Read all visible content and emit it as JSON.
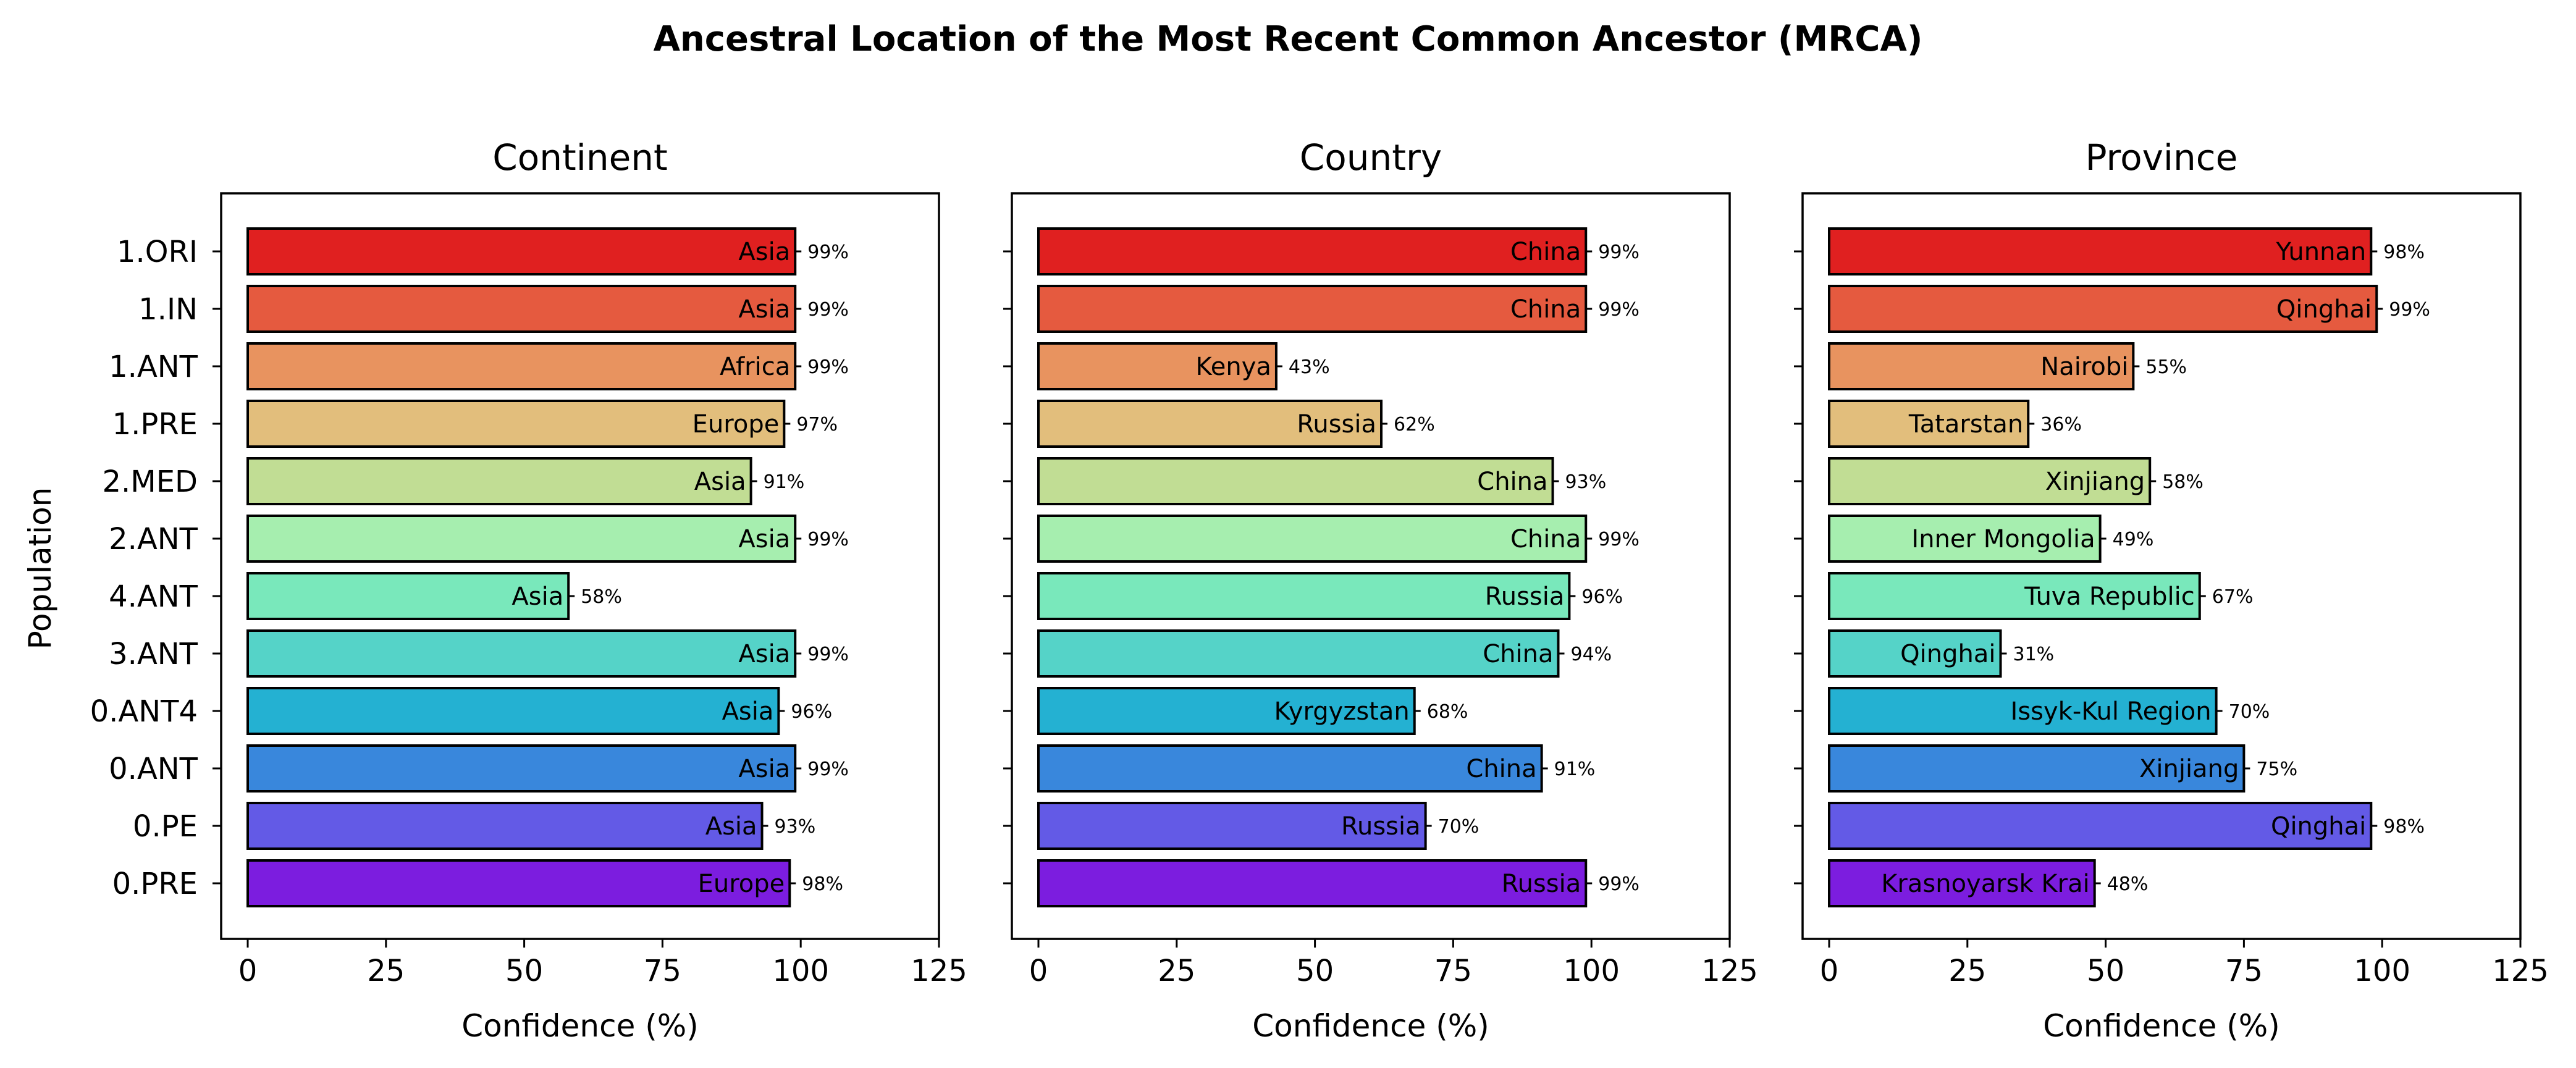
{
  "title": "Ancestral Location of the Most Recent Common Ancestor (MRCA)",
  "ylabel": "Population",
  "colors": [
    "#e02020",
    "#e55a3f",
    "#e8935f",
    "#e2be7c",
    "#c1dd94",
    "#a6eeaf",
    "#79e8bb",
    "#55d3c8",
    "#24b1d2",
    "#3987dc",
    "#635ae6",
    "#7c1ddf"
  ],
  "chart_data": [
    {
      "type": "bar",
      "orientation": "horizontal",
      "title": "Continent",
      "xlabel": "Confidence (%)",
      "ylabel": "Population",
      "xlim": [
        0,
        125
      ],
      "xticks": [
        "0",
        "25",
        "50",
        "75",
        "100",
        "125"
      ],
      "categories": [
        "1.ORI",
        "1.IN",
        "1.ANT",
        "1.PRE",
        "2.MED",
        "2.ANT",
        "4.ANT",
        "3.ANT",
        "0.ANT4",
        "0.ANT",
        "0.PE",
        "0.PRE"
      ],
      "values": [
        99,
        99,
        99,
        97,
        91,
        99,
        58,
        99,
        96,
        99,
        93,
        98
      ],
      "bar_labels": [
        "Asia",
        "Asia",
        "Africa",
        "Europe",
        "Asia",
        "Asia",
        "Asia",
        "Asia",
        "Asia",
        "Asia",
        "Asia",
        "Europe"
      ],
      "value_labels": [
        "99%",
        "99%",
        "99%",
        "97%",
        "91%",
        "99%",
        "58%",
        "99%",
        "96%",
        "99%",
        "93%",
        "98%"
      ]
    },
    {
      "type": "bar",
      "orientation": "horizontal",
      "title": "Country",
      "xlabel": "Confidence (%)",
      "xlim": [
        0,
        125
      ],
      "xticks": [
        "0",
        "25",
        "50",
        "75",
        "100",
        "125"
      ],
      "categories": [
        "1.ORI",
        "1.IN",
        "1.ANT",
        "1.PRE",
        "2.MED",
        "2.ANT",
        "4.ANT",
        "3.ANT",
        "0.ANT4",
        "0.ANT",
        "0.PE",
        "0.PRE"
      ],
      "values": [
        99,
        99,
        43,
        62,
        93,
        99,
        96,
        94,
        68,
        91,
        70,
        99
      ],
      "bar_labels": [
        "China",
        "China",
        "Kenya",
        "Russia",
        "China",
        "China",
        "Russia",
        "China",
        "Kyrgyzstan",
        "China",
        "Russia",
        "Russia"
      ],
      "value_labels": [
        "99%",
        "99%",
        "43%",
        "62%",
        "93%",
        "99%",
        "96%",
        "94%",
        "68%",
        "91%",
        "70%",
        "99%"
      ]
    },
    {
      "type": "bar",
      "orientation": "horizontal",
      "title": "Province",
      "xlabel": "Confidence (%)",
      "xlim": [
        0,
        125
      ],
      "xticks": [
        "0",
        "25",
        "50",
        "75",
        "100",
        "125"
      ],
      "categories": [
        "1.ORI",
        "1.IN",
        "1.ANT",
        "1.PRE",
        "2.MED",
        "2.ANT",
        "4.ANT",
        "3.ANT",
        "0.ANT4",
        "0.ANT",
        "0.PE",
        "0.PRE"
      ],
      "values": [
        98,
        99,
        55,
        36,
        58,
        49,
        67,
        31,
        70,
        75,
        98,
        48
      ],
      "bar_labels": [
        "Yunnan",
        "Qinghai",
        "Nairobi",
        "Tatarstan",
        "Xinjiang",
        "Inner Mongolia",
        "Tuva Republic",
        "Qinghai",
        "Issyk-Kul Region",
        "Xinjiang",
        "Qinghai",
        "Krasnoyarsk Krai"
      ],
      "value_labels": [
        "98%",
        "99%",
        "55%",
        "36%",
        "58%",
        "49%",
        "67%",
        "31%",
        "70%",
        "75%",
        "98%",
        "48%"
      ]
    }
  ]
}
